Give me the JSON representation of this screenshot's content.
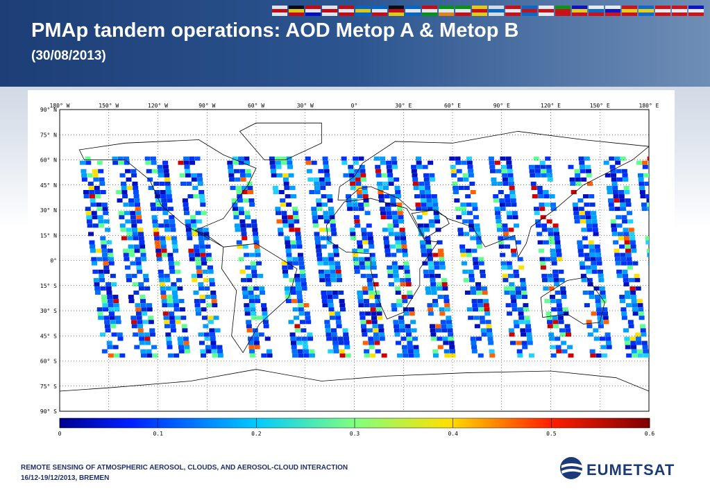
{
  "header": {
    "title": "PMAp tandem operations: AOD Metop A & Metop B",
    "subtitle": "(30/08/2013)"
  },
  "map": {
    "lon_labels": [
      "180° W",
      "150° W",
      "120° W",
      "90° W",
      "60° W",
      "30° W",
      "0°",
      "30° E",
      "60° E",
      "90° E",
      "120° E",
      "150° E",
      "180° E"
    ],
    "lat_labels": [
      "90° N",
      "75° N",
      "60° N",
      "45° N",
      "30° N",
      "15° N",
      "0°",
      "15° S",
      "30° S",
      "45° S",
      "60° S",
      "75° S",
      "90° S"
    ]
  },
  "colorbar": {
    "lim": [
      0,
      0.6
    ],
    "ticks": [
      0,
      0.1,
      0.2,
      0.3,
      0.4,
      0.5,
      0.6
    ]
  },
  "footer": {
    "line1": "REMOTE SENSING OF ATMOSPHERIC AEROSOL, CLOUDS, AND AEROSOL-CLOUD INTERACTION",
    "line2": "16/12-19/12/2013, BREMEN",
    "logo": "EUMETSAT"
  }
}
